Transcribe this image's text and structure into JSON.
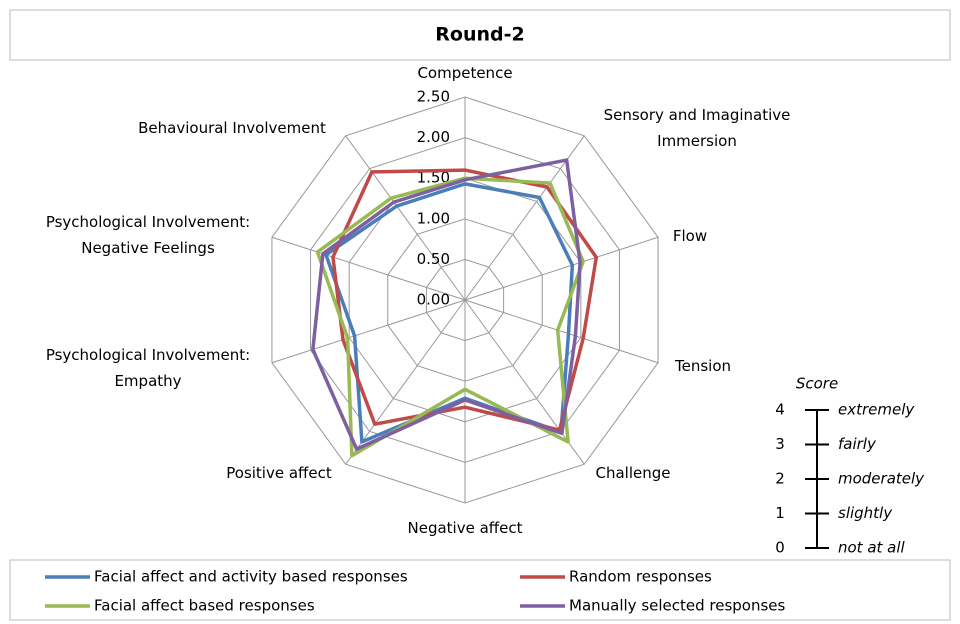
{
  "chart_data": {
    "type": "radar",
    "title": "Round-2",
    "categories": [
      "Competence",
      "Sensory and Imaginative Immersion",
      "Flow",
      "Tension",
      "Challenge",
      "Negative affect",
      "Positive affect",
      "Psychological Involvement: Empathy",
      "Psychological Involvement: Negative Feelings",
      "Behavioural Involvement"
    ],
    "rlim": [
      0,
      2.5
    ],
    "rticks": [
      {
        "value": 0,
        "label": "0.00"
      },
      {
        "value": 0.5,
        "label": "0.50"
      },
      {
        "value": 1,
        "label": "1.00"
      },
      {
        "value": 1.5,
        "label": "1.50"
      },
      {
        "value": 2,
        "label": "2.00"
      },
      {
        "value": 2.5,
        "label": "2.50"
      }
    ],
    "grid": true,
    "legend": "bottom",
    "series": [
      {
        "name": "Facial affect and activity based responses",
        "color": "#4a7ebb",
        "values": [
          1.43,
          1.56,
          1.39,
          1.34,
          2.01,
          1.21,
          2.16,
          1.43,
          1.8,
          1.43
        ]
      },
      {
        "name": "Random responses",
        "color": "#be4b48",
        "values": [
          1.6,
          1.72,
          1.7,
          1.53,
          1.98,
          1.32,
          1.89,
          1.58,
          1.71,
          1.95
        ]
      },
      {
        "name": "Facial affect based responses",
        "color": "#98b954",
        "values": [
          1.5,
          1.78,
          1.53,
          1.2,
          2.16,
          1.1,
          2.37,
          1.52,
          1.91,
          1.55
        ]
      },
      {
        "name": "Manually selected responses",
        "color": "#7d60a0",
        "values": [
          1.48,
          2.13,
          1.49,
          1.43,
          2.03,
          1.23,
          2.27,
          1.97,
          1.84,
          1.49
        ]
      }
    ]
  },
  "score_legend": {
    "title": "Score",
    "levels": [
      {
        "value": 4,
        "label": "extremely"
      },
      {
        "value": 3,
        "label": "fairly"
      },
      {
        "value": 2,
        "label": "moderately"
      },
      {
        "value": 1,
        "label": "slightly"
      },
      {
        "value": 0,
        "label": "not at all"
      }
    ]
  }
}
